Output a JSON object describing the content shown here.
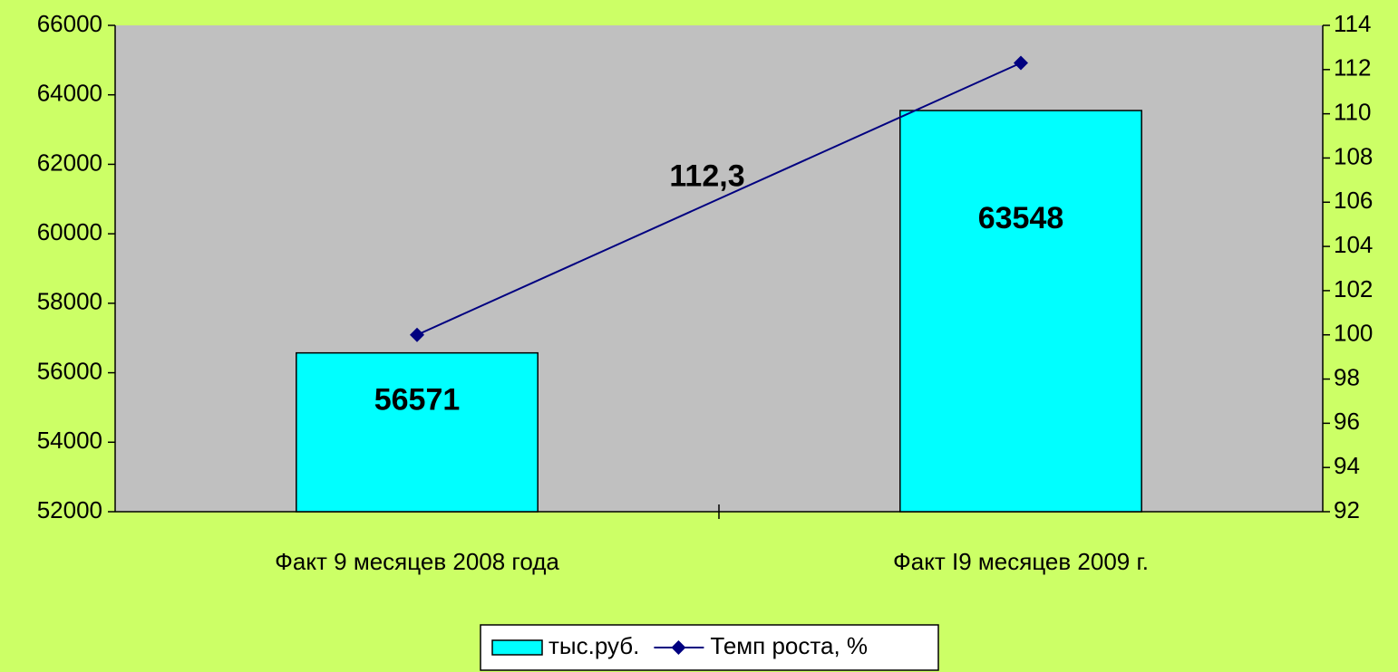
{
  "chart_data": {
    "type": "bar_line",
    "categories": [
      "Факт 9 месяцев 2008 года",
      "Факт I9 месяцев 2009 г."
    ],
    "series": [
      {
        "name": "тыс.руб.",
        "type": "bar",
        "color": "#00ffff",
        "values": [
          56571,
          63548
        ]
      },
      {
        "name": "Темп роста, %",
        "type": "line",
        "axis": "y2",
        "color": "#000080",
        "values": [
          100,
          112.3
        ],
        "value_labels": [
          null,
          "112,3"
        ]
      }
    ],
    "ylim": [
      52000,
      66000
    ],
    "yticks": [
      52000,
      54000,
      56000,
      58000,
      60000,
      62000,
      64000,
      66000
    ],
    "y2lim": [
      92,
      114
    ],
    "y2ticks": [
      92,
      94,
      96,
      98,
      100,
      102,
      104,
      106,
      108,
      110,
      112,
      114
    ],
    "legend": "bottom"
  }
}
